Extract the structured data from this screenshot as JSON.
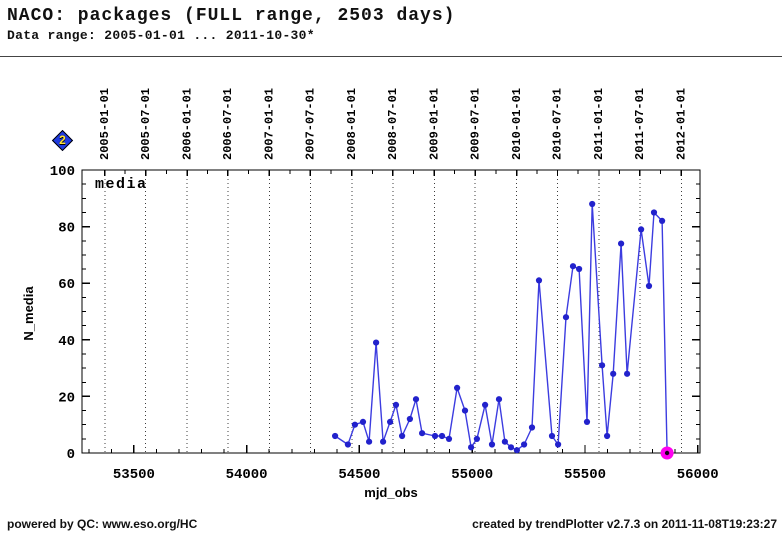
{
  "header": {
    "title": "NACO: packages (FULL range, 2503 days)",
    "subtitle": "Data range: 2005-01-01 ... 2011-10-30*"
  },
  "nav_icon": {
    "label": "2"
  },
  "footer": {
    "left": "powered by QC: www.eso.org/HC",
    "right": "created by trendPlotter v2.7.3 on 2011-11-08T19:23:27"
  },
  "colors": {
    "line": "#3c3ce0",
    "point": "#2222cc",
    "last_point": "#ff00f0",
    "last_point_core": "#1a001a",
    "grid": "#3c3c3c",
    "axis": "#000000"
  },
  "chart_data": {
    "type": "line",
    "title": "",
    "xlabel": "mjd_obs",
    "ylabel": "N_media",
    "legend": [
      "media"
    ],
    "legend_position": "top-left-inside",
    "grid": "vertical dotted lines at 6-month date ticks",
    "xlim": [
      53270,
      56010
    ],
    "ylim": [
      0,
      100
    ],
    "x_ticks_major": [
      53500,
      54000,
      54500,
      55000,
      55500,
      56000
    ],
    "x_minor_step": 100,
    "y_ticks_major": [
      0,
      20,
      40,
      60,
      80,
      100
    ],
    "y_minor_step": 5,
    "date_ticks": [
      {
        "label": "2005-01-01",
        "mjd": 53371
      },
      {
        "label": "2005-07-01",
        "mjd": 53552
      },
      {
        "label": "2006-01-01",
        "mjd": 53736
      },
      {
        "label": "2006-07-01",
        "mjd": 53917
      },
      {
        "label": "2007-01-01",
        "mjd": 54101
      },
      {
        "label": "2007-07-01",
        "mjd": 54282
      },
      {
        "label": "2008-01-01",
        "mjd": 54466
      },
      {
        "label": "2008-07-01",
        "mjd": 54648
      },
      {
        "label": "2009-01-01",
        "mjd": 54832
      },
      {
        "label": "2009-07-01",
        "mjd": 55013
      },
      {
        "label": "2010-01-01",
        "mjd": 55197
      },
      {
        "label": "2010-07-01",
        "mjd": 55378
      },
      {
        "label": "2011-01-01",
        "mjd": 55562
      },
      {
        "label": "2011-07-01",
        "mjd": 55743
      },
      {
        "label": "2012-01-01",
        "mjd": 55927
      }
    ],
    "series": [
      {
        "name": "media",
        "x": [
          54392,
          54449,
          54480,
          54516,
          54543,
          54574,
          54605,
          54636,
          54662,
          54689,
          54724,
          54751,
          54778,
          54835,
          54866,
          54897,
          54933,
          54968,
          54995,
          55021,
          55057,
          55088,
          55119,
          55145,
          55172,
          55198,
          55230,
          55265,
          55296,
          55354,
          55381,
          55416,
          55447,
          55474,
          55509,
          55532,
          55576,
          55598,
          55625,
          55660,
          55687,
          55749,
          55784,
          55806,
          55842,
          55864
        ],
        "y": [
          6,
          3,
          10,
          11,
          4,
          39,
          4,
          11,
          17,
          6,
          12,
          19,
          7,
          6,
          6,
          5,
          23,
          15,
          2,
          5,
          17,
          3,
          19,
          4,
          2,
          1,
          3,
          9,
          61,
          6,
          3,
          48,
          66,
          65,
          11,
          88,
          31,
          6,
          28,
          74,
          28,
          79,
          59,
          85,
          82,
          0
        ]
      }
    ],
    "highlight_last_point": true
  }
}
